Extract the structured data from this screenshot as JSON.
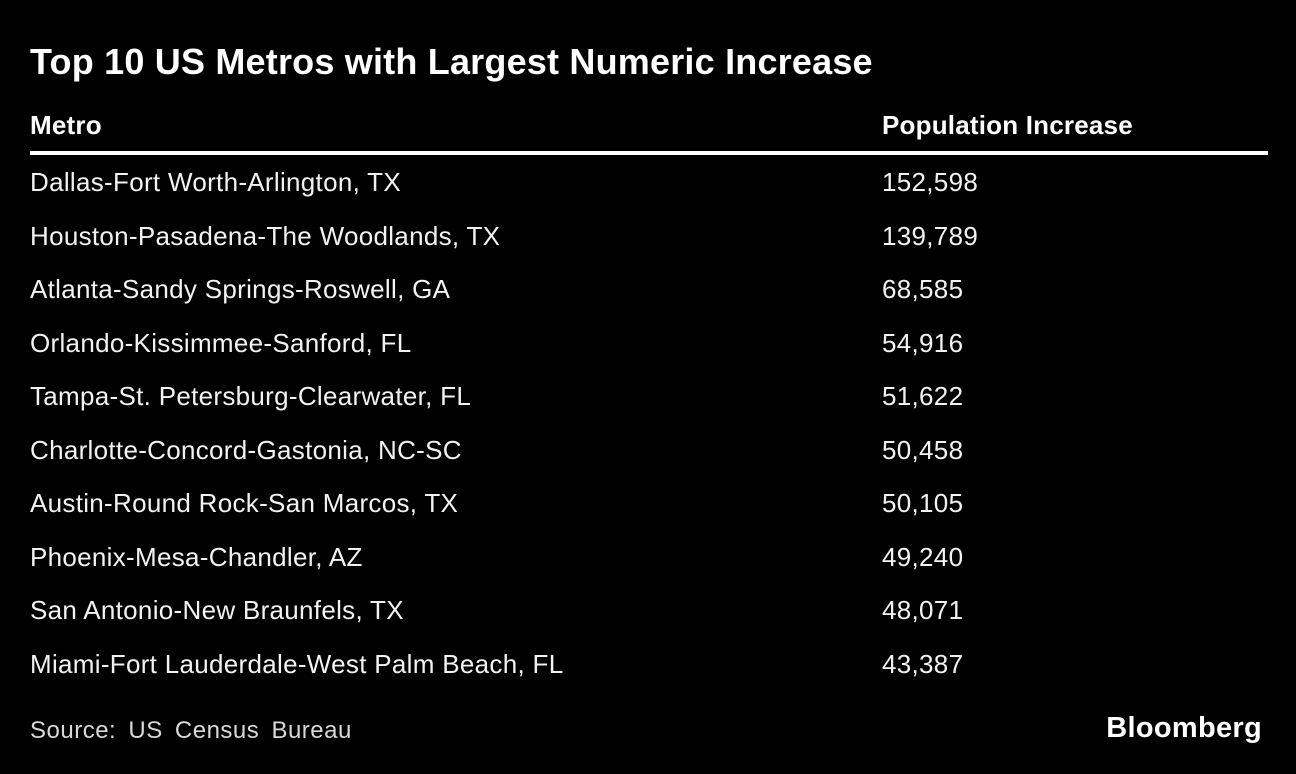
{
  "title": "Top 10 US Metros with Largest Numeric Increase",
  "colors": {
    "background": "#000000",
    "title_text": "#ffffff",
    "row_text": "#f2f2f2",
    "muted_text": "#d9d9d9",
    "rule": "#ffffff"
  },
  "table": {
    "headers": {
      "metro": "Metro",
      "value": "Population Increase"
    },
    "rows": [
      {
        "metro": "Dallas-Fort Worth-Arlington, TX",
        "value": "152,598"
      },
      {
        "metro": "Houston-Pasadena-The Woodlands, TX",
        "value": "139,789"
      },
      {
        "metro": "Atlanta-Sandy Springs-Roswell, GA",
        "value": "68,585"
      },
      {
        "metro": "Orlando-Kissimmee-Sanford, FL",
        "value": "54,916"
      },
      {
        "metro": "Tampa-St. Petersburg-Clearwater, FL",
        "value": "51,622"
      },
      {
        "metro": "Charlotte-Concord-Gastonia, NC-SC",
        "value": "50,458"
      },
      {
        "metro": "Austin-Round Rock-San Marcos, TX",
        "value": "50,105"
      },
      {
        "metro": "Phoenix-Mesa-Chandler, AZ",
        "value": "49,240"
      },
      {
        "metro": "San Antonio-New Braunfels, TX",
        "value": "48,071"
      },
      {
        "metro": "Miami-Fort Lauderdale-West Palm Beach, FL",
        "value": "43,387"
      }
    ]
  },
  "footer": {
    "source_label": "Source:",
    "source_text": "US Census Bureau",
    "brand": "Bloomberg"
  },
  "chart_data": {
    "type": "table",
    "title": "Top 10 US Metros with Largest Numeric Increase",
    "columns": [
      "Metro",
      "Population Increase"
    ],
    "rows": [
      [
        "Dallas-Fort Worth-Arlington, TX",
        152598
      ],
      [
        "Houston-Pasadena-The Woodlands, TX",
        139789
      ],
      [
        "Atlanta-Sandy Springs-Roswell, GA",
        68585
      ],
      [
        "Orlando-Kissimmee-Sanford, FL",
        54916
      ],
      [
        "Tampa-St. Petersburg-Clearwater, FL",
        51622
      ],
      [
        "Charlotte-Concord-Gastonia, NC-SC",
        50458
      ],
      [
        "Austin-Round Rock-San Marcos, TX",
        50105
      ],
      [
        "Phoenix-Mesa-Chandler, AZ",
        49240
      ],
      [
        "San Antonio-New Braunfels, TX",
        48071
      ],
      [
        "Miami-Fort Lauderdale-West Palm Beach, FL",
        43387
      ]
    ],
    "source": "US Census Bureau",
    "legend": false,
    "grid": false
  }
}
